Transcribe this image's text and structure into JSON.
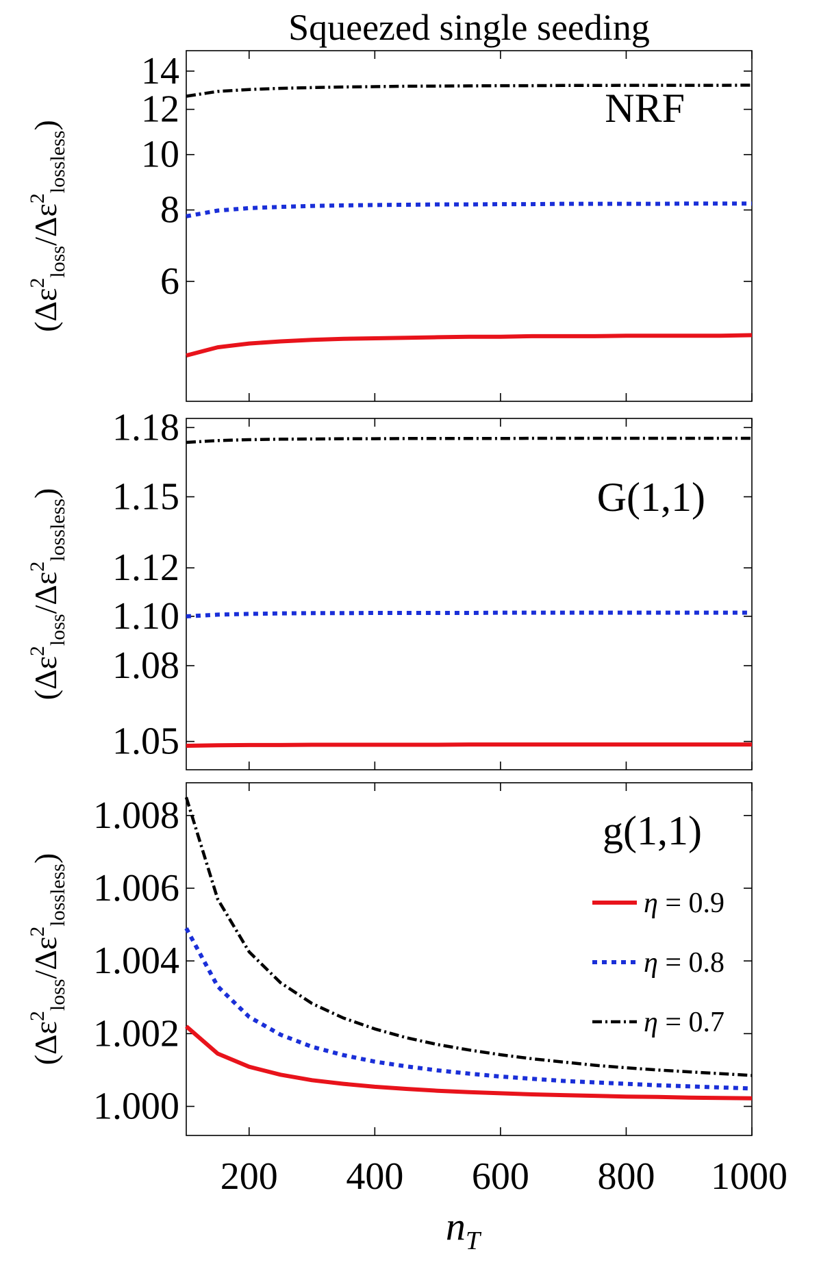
{
  "title": "Squeezed single seeding",
  "chart_data": [
    {
      "type": "line",
      "panel_label": "NRF",
      "ylabel": "(Δε²loss/Δε²lossless)",
      "ylabel_parts": {
        "open": "(Δε",
        "sup1": "2",
        "sub1": "loss",
        "mid": "/Δε",
        "sup2": "2",
        "sub2": "lossless",
        "close": ")"
      },
      "scale": "log",
      "xlim": [
        100,
        1000
      ],
      "ylim": [
        3.7,
        15.2
      ],
      "yticks": [
        6,
        8,
        10,
        12,
        14
      ],
      "ytick_labels": [
        "6",
        "8",
        "10",
        "12",
        "14"
      ],
      "x": [
        100,
        150,
        200,
        250,
        300,
        350,
        400,
        450,
        500,
        550,
        600,
        650,
        700,
        750,
        800,
        850,
        900,
        950,
        1000
      ],
      "series": [
        {
          "name": "η = 0.9",
          "values": [
            4.45,
            4.6,
            4.67,
            4.71,
            4.74,
            4.76,
            4.77,
            4.78,
            4.79,
            4.8,
            4.8,
            4.81,
            4.81,
            4.81,
            4.82,
            4.82,
            4.82,
            4.82,
            4.83
          ]
        },
        {
          "name": "η = 0.8",
          "values": [
            7.8,
            7.98,
            8.06,
            8.1,
            8.13,
            8.15,
            8.16,
            8.17,
            8.18,
            8.18,
            8.19,
            8.19,
            8.2,
            8.2,
            8.2,
            8.2,
            8.21,
            8.21,
            8.21
          ]
        },
        {
          "name": "η = 0.7",
          "values": [
            12.65,
            12.9,
            13.0,
            13.06,
            13.1,
            13.13,
            13.15,
            13.17,
            13.18,
            13.19,
            13.2,
            13.2,
            13.21,
            13.21,
            13.22,
            13.22,
            13.22,
            13.22,
            13.23
          ]
        }
      ]
    },
    {
      "type": "line",
      "panel_label": "G(1,1)",
      "ylabel": "(Δε²loss/Δε²lossless)",
      "ylabel_parts": {
        "open": "(Δε",
        "sup1": "2",
        "sub1": "loss",
        "mid": "/Δε",
        "sup2": "2",
        "sub2": "lossless",
        "close": ")"
      },
      "scale": "log",
      "xlim": [
        100,
        1000
      ],
      "ylim": [
        1.039,
        1.184
      ],
      "yticks": [
        1.05,
        1.08,
        1.1,
        1.12,
        1.15,
        1.18
      ],
      "ytick_labels": [
        "1.05",
        "1.08",
        "1.10",
        "1.12",
        "1.15",
        "1.18"
      ],
      "x": [
        100,
        150,
        200,
        250,
        300,
        350,
        400,
        450,
        500,
        550,
        600,
        650,
        700,
        750,
        800,
        850,
        900,
        950,
        1000
      ],
      "series": [
        {
          "name": "η = 0.9",
          "values": [
            1.0483,
            1.0485,
            1.0486,
            1.0486,
            1.0487,
            1.0487,
            1.0487,
            1.0487,
            1.0487,
            1.0488,
            1.0488,
            1.0488,
            1.0488,
            1.0488,
            1.0488,
            1.0488,
            1.0488,
            1.0488,
            1.0488
          ]
        },
        {
          "name": "η = 0.8",
          "values": [
            1.1,
            1.1007,
            1.101,
            1.1012,
            1.1013,
            1.1013,
            1.1014,
            1.1014,
            1.1014,
            1.1014,
            1.1015,
            1.1015,
            1.1015,
            1.1015,
            1.1015,
            1.1015,
            1.1015,
            1.1015,
            1.1015
          ]
        },
        {
          "name": "η = 0.7",
          "values": [
            1.1735,
            1.1743,
            1.1747,
            1.1749,
            1.175,
            1.1751,
            1.1751,
            1.1752,
            1.1752,
            1.1752,
            1.1752,
            1.1753,
            1.1753,
            1.1753,
            1.1753,
            1.1753,
            1.1753,
            1.1753,
            1.1753
          ]
        }
      ]
    },
    {
      "type": "line",
      "panel_label": "g(1,1)",
      "ylabel": "(Δε²loss/Δε²lossless)",
      "ylabel_parts": {
        "open": "(Δε",
        "sup1": "2",
        "sub1": "loss",
        "mid": "/Δε",
        "sup2": "2",
        "sub2": "lossless",
        "close": ")"
      },
      "scale": "linear",
      "xlim": [
        100,
        1000
      ],
      "ylim": [
        0.9992,
        1.0089
      ],
      "yticks": [
        1.0,
        1.002,
        1.004,
        1.006,
        1.008
      ],
      "ytick_labels": [
        "1.000",
        "1.002",
        "1.004",
        "1.006",
        "1.008"
      ],
      "xticks": [
        200,
        400,
        600,
        800,
        1000
      ],
      "xtick_labels": [
        "200",
        "400",
        "600",
        "800",
        "1000"
      ],
      "xlabel": "n",
      "xlabel_sub": "T",
      "x": [
        100,
        150,
        200,
        250,
        300,
        350,
        400,
        450,
        500,
        550,
        600,
        650,
        700,
        750,
        800,
        850,
        900,
        950,
        1000
      ],
      "series": [
        {
          "name": "η = 0.9",
          "values": [
            1.0022,
            1.00145,
            1.00109,
            1.00087,
            1.00072,
            1.00062,
            1.00054,
            1.00048,
            1.00043,
            1.00039,
            1.00036,
            1.00033,
            1.00031,
            1.00029,
            1.00027,
            1.00026,
            1.00024,
            1.00023,
            1.00022
          ]
        },
        {
          "name": "η = 0.8",
          "values": [
            1.0049,
            1.0033,
            1.00246,
            1.00197,
            1.00164,
            1.00141,
            1.00123,
            1.0011,
            1.00099,
            1.0009,
            1.00082,
            1.00076,
            1.0007,
            1.00066,
            1.00062,
            1.00058,
            1.00055,
            1.00052,
            1.00049
          ]
        },
        {
          "name": "η = 0.7",
          "values": [
            1.0085,
            1.0057,
            1.00425,
            1.0034,
            1.00283,
            1.00243,
            1.00213,
            1.00189,
            1.0017,
            1.00155,
            1.00142,
            1.00131,
            1.00122,
            1.00113,
            1.00106,
            1.001,
            1.00095,
            1.0009,
            1.00085
          ]
        }
      ],
      "legend": {
        "position": "right",
        "entries": [
          {
            "label_prefix": "η",
            "label_value": " = 0.9"
          },
          {
            "label_prefix": "η",
            "label_value": " = 0.8"
          },
          {
            "label_prefix": "η",
            "label_value": " = 0.7"
          }
        ]
      }
    }
  ],
  "series_colors": [
    "#e8131b",
    "#1a2fd8",
    "#000000"
  ],
  "series_styles": [
    "solid",
    "dotted",
    "dashdot"
  ]
}
